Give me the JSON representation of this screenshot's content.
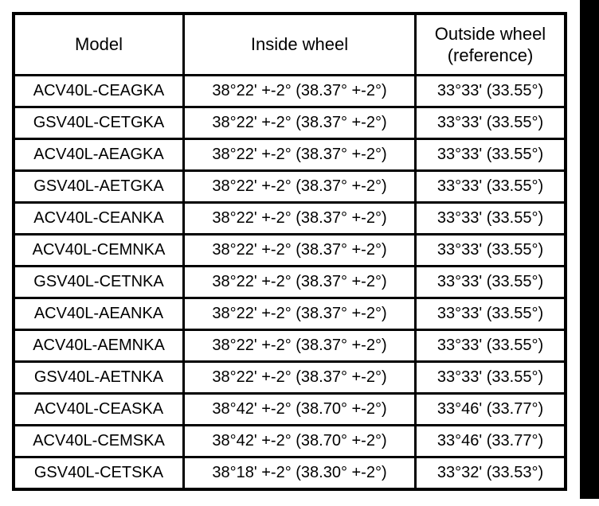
{
  "page": {
    "background_color": "#ffffff",
    "edge_bar_color": "#000000"
  },
  "table": {
    "headers": {
      "model": "Model",
      "inside": "Inside wheel",
      "outside_line1": "Outside wheel",
      "outside_line2": "(reference)"
    },
    "rows": [
      {
        "model": "ACV40L-CEAGKA",
        "inside": "38°22' +-2° (38.37° +-2°)",
        "outside": "33°33' (33.55°)"
      },
      {
        "model": "GSV40L-CETGKA",
        "inside": "38°22' +-2° (38.37° +-2°)",
        "outside": "33°33' (33.55°)"
      },
      {
        "model": "ACV40L-AEAGKA",
        "inside": "38°22' +-2° (38.37° +-2°)",
        "outside": "33°33' (33.55°)"
      },
      {
        "model": "GSV40L-AETGKA",
        "inside": "38°22' +-2° (38.37° +-2°)",
        "outside": "33°33' (33.55°)"
      },
      {
        "model": "ACV40L-CEANKA",
        "inside": "38°22' +-2° (38.37° +-2°)",
        "outside": "33°33' (33.55°)"
      },
      {
        "model": "ACV40L-CEMNKA",
        "inside": "38°22' +-2° (38.37° +-2°)",
        "outside": "33°33' (33.55°)"
      },
      {
        "model": "GSV40L-CETNKA",
        "inside": "38°22' +-2° (38.37° +-2°)",
        "outside": "33°33' (33.55°)"
      },
      {
        "model": "ACV40L-AEANKA",
        "inside": "38°22' +-2° (38.37° +-2°)",
        "outside": "33°33' (33.55°)"
      },
      {
        "model": "ACV40L-AEMNKA",
        "inside": "38°22' +-2° (38.37° +-2°)",
        "outside": "33°33' (33.55°)"
      },
      {
        "model": "GSV40L-AETNKA",
        "inside": "38°22' +-2° (38.37° +-2°)",
        "outside": "33°33' (33.55°)"
      },
      {
        "model": "ACV40L-CEASKA",
        "inside": "38°42' +-2° (38.70° +-2°)",
        "outside": "33°46' (33.77°)"
      },
      {
        "model": "ACV40L-CEMSKA",
        "inside": "38°42' +-2° (38.70° +-2°)",
        "outside": "33°46' (33.77°)"
      },
      {
        "model": "GSV40L-CETSKA",
        "inside": "38°18' +-2° (38.30° +-2°)",
        "outside": "33°32' (33.53°)"
      }
    ]
  }
}
